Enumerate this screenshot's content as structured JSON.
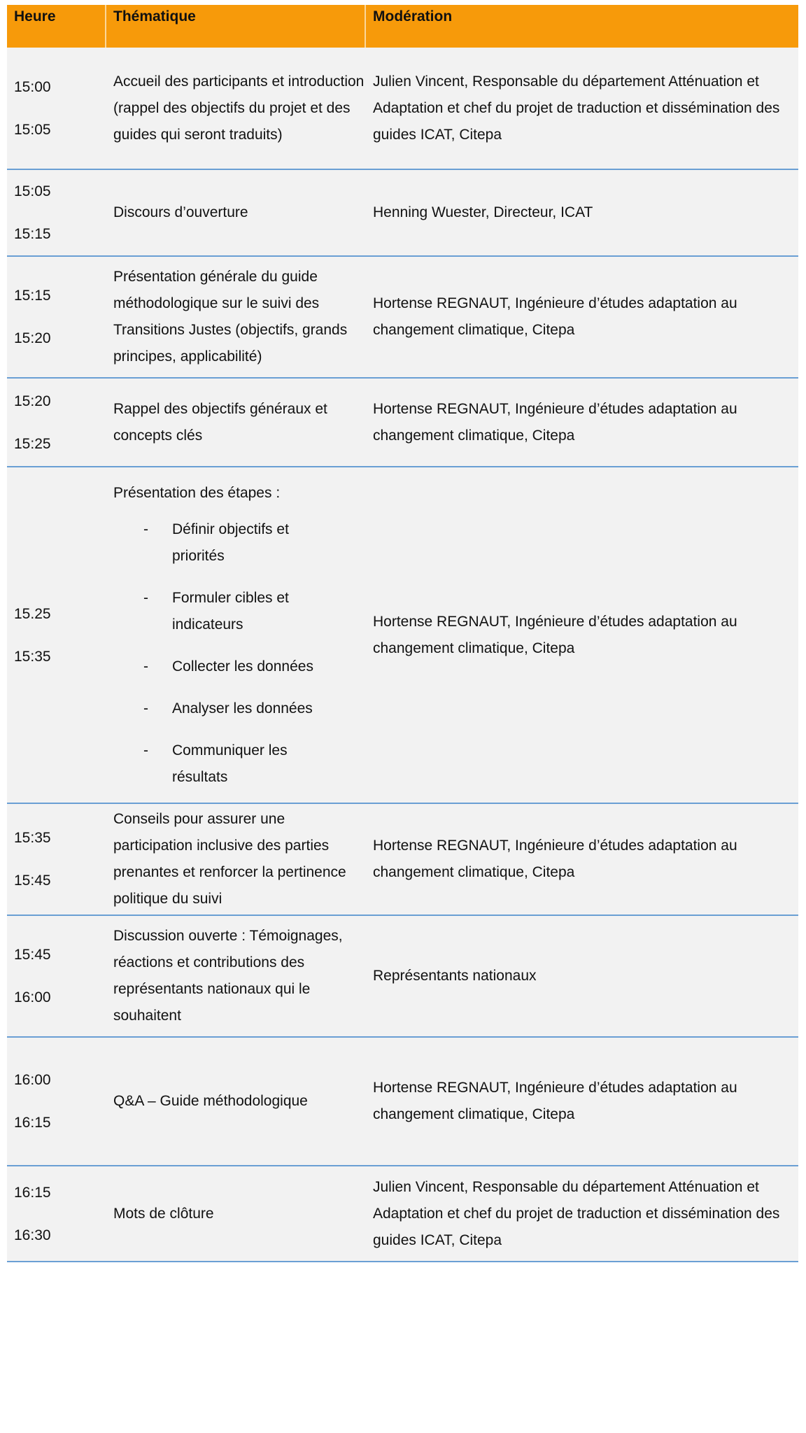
{
  "header": {
    "time": "Heure",
    "theme": "Thématique",
    "moderation": "Modération"
  },
  "rows": [
    {
      "start": "15:00",
      "end": "15:05",
      "theme": "Accueil des participants et introduction (rappel des objectifs du projet et des guides qui seront traduits)",
      "moderation": "Julien Vincent, Responsable du département Atténuation et Adaptation et chef du projet de traduction et dissémination des guides ICAT, Citepa"
    },
    {
      "start": "15:05",
      "end": "15:15",
      "theme": "Discours d’ouverture",
      "moderation": "Henning Wuester, Directeur, ICAT"
    },
    {
      "start": "15:15",
      "end": "15:20",
      "theme": "Présentation générale du guide méthodologique sur le suivi des Transitions Justes (objectifs, grands principes, applicabilité)",
      "moderation": "Hortense REGNAUT, Ingénieure d’études adaptation au changement climatique, Citepa"
    },
    {
      "start": "15:20",
      "end": "15:25",
      "theme": "Rappel des objectifs généraux et concepts clés",
      "moderation": "Hortense REGNAUT, Ingénieure d’études adaptation au changement climatique, Citepa"
    },
    {
      "start": "15.25",
      "end": "15:35",
      "theme": "Présentation des étapes :",
      "bullets": [
        "Définir objectifs et priorités",
        "Formuler cibles et indicateurs",
        "Collecter les données",
        "Analyser les données",
        "Communiquer les résultats"
      ],
      "bullet_marker": "-",
      "moderation": "Hortense REGNAUT, Ingénieure d’études adaptation au changement climatique, Citepa"
    },
    {
      "start": "15:35",
      "end": "15:45",
      "theme": "Conseils pour assurer une participation inclusive des parties prenantes et renforcer la pertinence politique du suivi",
      "moderation": "Hortense REGNAUT, Ingénieure d’études adaptation au changement climatique, Citepa"
    },
    {
      "start": "15:45",
      "end": "16:00",
      "theme": "Discussion ouverte : Témoignages, réactions et contributions des représentants nationaux qui le souhaitent",
      "moderation": "Représentants nationaux"
    },
    {
      "start": "16:00",
      "end": "16:15",
      "theme": "Q&A – Guide méthodologique",
      "moderation": "Hortense REGNAUT, Ingénieure d’études adaptation au changement climatique, Citepa"
    },
    {
      "start": "16:15",
      "end": "16:30",
      "theme": "Mots de clôture",
      "moderation": "Julien Vincent, Responsable du département Atténuation et Adaptation et chef du projet de traduction et dissémination des guides ICAT, Citepa"
    }
  ],
  "colors": {
    "header_bg": "#f79a0a",
    "row_bg": "#f2f2f2",
    "row_border": "#6a9fd4"
  }
}
